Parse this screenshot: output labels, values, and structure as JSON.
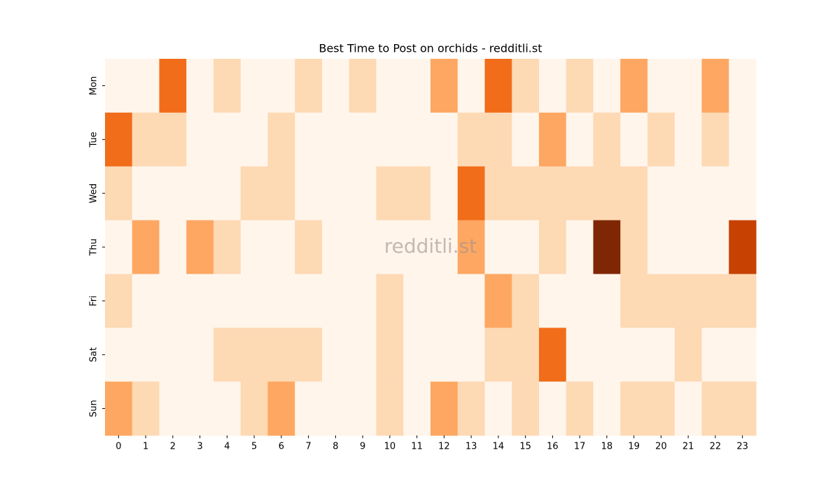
{
  "chart_data": {
    "type": "heatmap",
    "title": "Best Time to Post on orchids - redditli.st",
    "watermark": "redditli.st",
    "x": [
      0,
      1,
      2,
      3,
      4,
      5,
      6,
      7,
      8,
      9,
      10,
      11,
      12,
      13,
      14,
      15,
      16,
      17,
      18,
      19,
      20,
      21,
      22,
      23
    ],
    "categories": [
      "Mon",
      "Tue",
      "Wed",
      "Thu",
      "Fri",
      "Sat",
      "Sun"
    ],
    "values": [
      [
        0,
        0,
        3,
        0,
        1,
        0,
        0,
        1,
        0,
        1,
        0,
        0,
        2,
        0,
        3,
        1,
        0,
        1,
        0,
        2,
        0,
        0,
        2,
        0
      ],
      [
        3,
        1,
        1,
        0,
        0,
        0,
        1,
        0,
        0,
        0,
        0,
        0,
        0,
        1,
        1,
        0,
        2,
        0,
        1,
        0,
        1,
        0,
        1,
        0
      ],
      [
        1,
        0,
        0,
        0,
        0,
        1,
        1,
        0,
        0,
        0,
        1,
        1,
        0,
        3,
        1,
        1,
        1,
        1,
        1,
        1,
        0,
        0,
        0,
        0
      ],
      [
        0,
        2,
        0,
        2,
        1,
        0,
        0,
        1,
        0,
        0,
        0,
        0,
        0,
        2,
        0,
        0,
        1,
        0,
        5,
        1,
        0,
        0,
        0,
        4
      ],
      [
        1,
        0,
        0,
        0,
        0,
        0,
        0,
        0,
        0,
        0,
        1,
        0,
        0,
        0,
        2,
        1,
        0,
        0,
        0,
        1,
        1,
        1,
        1,
        1
      ],
      [
        0,
        0,
        0,
        0,
        1,
        1,
        1,
        1,
        0,
        0,
        1,
        0,
        0,
        0,
        1,
        1,
        3,
        0,
        0,
        0,
        0,
        1,
        0,
        0
      ],
      [
        2,
        1,
        0,
        0,
        0,
        1,
        2,
        0,
        0,
        0,
        1,
        0,
        2,
        1,
        0,
        1,
        0,
        1,
        0,
        1,
        1,
        0,
        1,
        1
      ]
    ],
    "colormap": [
      "#fff5eb",
      "#fdd9b4",
      "#fda762",
      "#f16d1a",
      "#c64102",
      "#7f2704"
    ],
    "vmin": 0,
    "vmax": 5
  }
}
